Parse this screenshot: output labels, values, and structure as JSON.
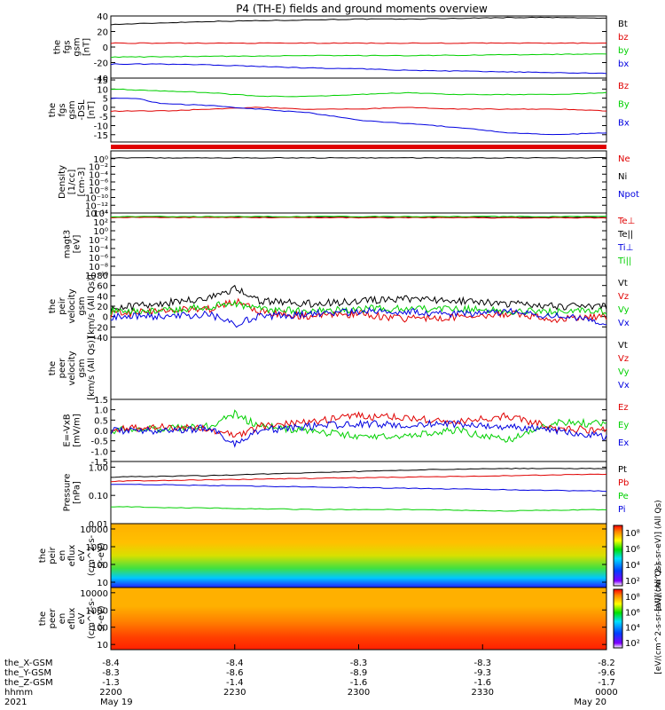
{
  "chart_data": {
    "type": "line",
    "title": "P4 (TH-E) fields and ground moments overview",
    "colors": {
      "black": "#000000",
      "red": "#e00000",
      "green": "#00d000",
      "blue": "#0000e0"
    },
    "panels": [
      {
        "name": "fgs-gsm",
        "ylabel": [
          "the",
          "fgs",
          "gsm",
          "[nT]"
        ],
        "ylim": [
          -40,
          40
        ],
        "yticks": [
          "40",
          "20",
          "0",
          "-20",
          "-40"
        ],
        "tickvals": [
          40,
          20,
          0,
          -20,
          -40
        ],
        "legend": [
          {
            "text": "Bt",
            "color": "black"
          },
          {
            "text": "bz",
            "color": "red"
          },
          {
            "text": "by",
            "color": "green"
          },
          {
            "text": "bx",
            "color": "blue"
          }
        ],
        "series": [
          {
            "color": "black",
            "x": [
              0,
              0.1,
              0.2,
              0.3,
              0.4,
              0.5,
              0.6,
              0.7,
              0.8,
              0.9,
              1
            ],
            "y": [
              29,
              31,
              33,
              34,
              35,
              36,
              36,
              37,
              38,
              38,
              37
            ]
          },
          {
            "color": "red",
            "x": [
              0,
              0.5,
              1
            ],
            "y": [
              5,
              5,
              5
            ]
          },
          {
            "color": "green",
            "x": [
              0,
              0.2,
              0.4,
              0.6,
              0.8,
              1
            ],
            "y": [
              -13,
              -12,
              -11,
              -11,
              -10,
              -9
            ]
          },
          {
            "color": "blue",
            "x": [
              0,
              0.1,
              0.2,
              0.3,
              0.4,
              0.5,
              0.6,
              0.7,
              0.8,
              0.9,
              1
            ],
            "y": [
              -22,
              -22,
              -23,
              -25,
              -27,
              -28,
              -30,
              -31,
              -32,
              -33,
              -34
            ]
          }
        ]
      },
      {
        "name": "fgs-gsm-dsl",
        "ylabel": [
          "the",
          "fgs",
          "gsm",
          "-DSL",
          "[nT]"
        ],
        "ylim": [
          -19,
          16
        ],
        "yticks": [
          "15",
          "10",
          "5",
          "0",
          "-5",
          "-10",
          "-15"
        ],
        "tickvals": [
          15,
          10,
          5,
          0,
          -5,
          -10,
          -15
        ],
        "legend": [
          {
            "text": "Bz",
            "color": "red"
          },
          {
            "text": "By",
            "color": "green"
          },
          {
            "text": "Bx",
            "color": "blue"
          }
        ],
        "series": [
          {
            "color": "green",
            "x": [
              0,
              0.1,
              0.2,
              0.3,
              0.4,
              0.5,
              0.6,
              0.7,
              0.8,
              0.9,
              1
            ],
            "y": [
              10,
              9,
              8,
              6,
              6,
              7,
              8,
              7,
              7,
              7,
              8
            ]
          },
          {
            "color": "red",
            "x": [
              0,
              0.1,
              0.2,
              0.3,
              0.4,
              0.5,
              0.6,
              0.7,
              0.8,
              0.9,
              1
            ],
            "y": [
              -2,
              -2,
              -1,
              0,
              -1,
              -1,
              0,
              -1,
              -1,
              -1,
              -2
            ]
          },
          {
            "color": "blue",
            "x": [
              0,
              0.05,
              0.1,
              0.2,
              0.3,
              0.4,
              0.5,
              0.6,
              0.7,
              0.8,
              0.9,
              1
            ],
            "y": [
              5,
              5,
              2,
              1,
              -1,
              -3,
              -7,
              -9,
              -11,
              -14,
              -15,
              -14
            ]
          }
        ]
      },
      {
        "name": "density",
        "ylabel": [
          "Density",
          "[1/cc]",
          "[cm-3]"
        ],
        "ylim": [
          -14,
          2
        ],
        "log": true,
        "yticks": [
          "10⁰",
          "10⁻²",
          "10⁻⁴",
          "10⁻⁶",
          "10⁻⁸",
          "10⁻¹⁰",
          "10⁻¹²",
          "10⁻¹⁴"
        ],
        "tickvals": [
          0,
          -2,
          -4,
          -6,
          -8,
          -10,
          -12,
          -14
        ],
        "legend": [
          {
            "text": "Ne",
            "color": "red"
          },
          {
            "text": "Ni",
            "color": "black"
          },
          {
            "text": "Npot",
            "color": "blue"
          }
        ],
        "series": [
          {
            "color": "black",
            "x": [
              0,
              1
            ],
            "y": [
              0.2,
              0.2
            ]
          }
        ]
      },
      {
        "name": "temperature",
        "ylabel": [
          "magt3",
          "[eV]"
        ],
        "ylim": [
          -10,
          4
        ],
        "log": true,
        "yticks": [
          "10⁴",
          "10²",
          "10⁰",
          "10⁻²",
          "10⁻⁴",
          "10⁻⁶",
          "10⁻⁸",
          "10⁻¹⁰"
        ],
        "tickvals": [
          4,
          2,
          0,
          -2,
          -4,
          -6,
          -8,
          -10
        ],
        "legend": [
          {
            "text": "Te⊥",
            "color": "red"
          },
          {
            "text": "Te||",
            "color": "black"
          },
          {
            "text": "Ti⊥",
            "color": "blue"
          },
          {
            "text": "Ti||",
            "color": "green"
          }
        ],
        "series": [
          {
            "color": "black",
            "x": [
              0,
              1
            ],
            "y": [
              3.1,
              3.0
            ]
          },
          {
            "color": "red",
            "x": [
              0,
              1
            ],
            "y": [
              3.0,
              2.9
            ]
          },
          {
            "color": "green",
            "x": [
              0,
              1
            ],
            "y": [
              3.2,
              3.2
            ]
          }
        ]
      },
      {
        "name": "peir-velocity",
        "ylabel": [
          "the",
          "peir",
          "velocity",
          "gsm",
          "[km/s (All Qs)]"
        ],
        "ylim": [
          -40,
          80
        ],
        "yticks": [
          "80",
          "60",
          "40",
          "20",
          "0",
          "-20",
          "-40"
        ],
        "tickvals": [
          80,
          60,
          40,
          20,
          0,
          -20,
          -40
        ],
        "legend": [
          {
            "text": "Vt",
            "color": "black"
          },
          {
            "text": "Vz",
            "color": "red"
          },
          {
            "text": "Vy",
            "color": "green"
          },
          {
            "text": "Vx",
            "color": "blue"
          }
        ],
        "series": [
          {
            "color": "black",
            "x": [
              0,
              0.1,
              0.2,
              0.25,
              0.3,
              0.4,
              0.5,
              0.6,
              0.7,
              0.8,
              0.9,
              1
            ],
            "y": [
              15,
              25,
              35,
              55,
              30,
              25,
              30,
              35,
              30,
              25,
              20,
              20
            ]
          },
          {
            "color": "red",
            "x": [
              0,
              0.1,
              0.2,
              0.25,
              0.3,
              0.4,
              0.5,
              0.6,
              0.7,
              0.8,
              0.9,
              1
            ],
            "y": [
              5,
              10,
              15,
              30,
              10,
              0,
              5,
              -5,
              0,
              5,
              -5,
              0
            ]
          },
          {
            "color": "green",
            "x": [
              0,
              0.1,
              0.2,
              0.25,
              0.3,
              0.4,
              0.5,
              0.6,
              0.7,
              0.8,
              0.9,
              1
            ],
            "y": [
              10,
              10,
              20,
              25,
              15,
              10,
              15,
              15,
              15,
              10,
              10,
              10
            ]
          },
          {
            "color": "blue",
            "x": [
              0,
              0.1,
              0.2,
              0.25,
              0.3,
              0.4,
              0.5,
              0.6,
              0.7,
              0.8,
              0.9,
              1
            ],
            "y": [
              0,
              0,
              5,
              -15,
              0,
              5,
              10,
              10,
              5,
              10,
              0,
              -10
            ]
          }
        ]
      },
      {
        "name": "peer-velocity",
        "ylabel": [
          "the",
          "peer",
          "velocity",
          "gsm",
          "[km/s (All Qs)]"
        ],
        "ylim": [
          0,
          1
        ],
        "yticks": [],
        "tickvals": [],
        "legend": [
          {
            "text": "Vt",
            "color": "black"
          },
          {
            "text": "Vz",
            "color": "red"
          },
          {
            "text": "Vy",
            "color": "green"
          },
          {
            "text": "Vx",
            "color": "blue"
          }
        ],
        "series": []
      },
      {
        "name": "e-field",
        "ylabel": [
          "E=-VxB",
          "[mV/m]"
        ],
        "ylim": [
          -1.5,
          1.5
        ],
        "yticks": [
          "1.5",
          "1.0",
          "0.5",
          "0.0",
          "-0.5",
          "-1.0",
          "-1.5"
        ],
        "tickvals": [
          1.5,
          1,
          0.5,
          0,
          -0.5,
          -1,
          -1.5
        ],
        "legend": [
          {
            "text": "Ez",
            "color": "red"
          },
          {
            "text": "Ey",
            "color": "green"
          },
          {
            "text": "Ex",
            "color": "blue"
          }
        ],
        "series": [
          {
            "color": "green",
            "x": [
              0,
              0.1,
              0.2,
              0.25,
              0.3,
              0.4,
              0.5,
              0.6,
              0.7,
              0.8,
              0.9,
              1
            ],
            "y": [
              0,
              0.1,
              0.2,
              0.8,
              0.2,
              0,
              -0.3,
              -0.2,
              0,
              -0.5,
              0.4,
              0.3
            ]
          },
          {
            "color": "red",
            "x": [
              0,
              0.1,
              0.2,
              0.25,
              0.3,
              0.4,
              0.5,
              0.6,
              0.7,
              0.8,
              0.9,
              1
            ],
            "y": [
              0,
              0.2,
              0.1,
              -0.3,
              0.2,
              0.4,
              0.7,
              0.6,
              0.4,
              0.7,
              0.1,
              0
            ]
          },
          {
            "color": "blue",
            "x": [
              0,
              0.1,
              0.2,
              0.25,
              0.3,
              0.4,
              0.5,
              0.6,
              0.7,
              0.8,
              0.9,
              1
            ],
            "y": [
              0,
              0,
              0.1,
              -0.6,
              0,
              0.2,
              0.3,
              0.3,
              0.3,
              0.2,
              0,
              -0.3
            ]
          }
        ]
      },
      {
        "name": "pressure",
        "ylabel": [
          "Pressure",
          "[nPa]"
        ],
        "ylim": [
          -2,
          0.2
        ],
        "log": true,
        "yticks": [
          "1.00",
          "0.10",
          "0.01"
        ],
        "tickvals": [
          0,
          -1,
          -2
        ],
        "legend": [
          {
            "text": "Pt",
            "color": "black"
          },
          {
            "text": "Pb",
            "color": "red"
          },
          {
            "text": "Pe",
            "color": "green"
          },
          {
            "text": "Pi",
            "color": "blue"
          }
        ],
        "series": [
          {
            "color": "black",
            "x": [
              0,
              0.2,
              0.4,
              0.6,
              0.8,
              1
            ],
            "y": [
              -0.35,
              -0.3,
              -0.2,
              -0.1,
              -0.05,
              -0.05
            ]
          },
          {
            "color": "red",
            "x": [
              0,
              0.2,
              0.4,
              0.6,
              0.8,
              1
            ],
            "y": [
              -0.5,
              -0.45,
              -0.4,
              -0.35,
              -0.3,
              -0.25
            ]
          },
          {
            "color": "blue",
            "x": [
              0,
              0.2,
              0.4,
              0.6,
              0.8,
              1
            ],
            "y": [
              -0.6,
              -0.65,
              -0.7,
              -0.75,
              -0.8,
              -0.85
            ]
          },
          {
            "color": "green",
            "x": [
              0,
              0.2,
              0.4,
              0.6,
              0.8,
              1
            ],
            "y": [
              -1.4,
              -1.45,
              -1.5,
              -1.5,
              -1.55,
              -1.5
            ]
          }
        ]
      },
      {
        "name": "peir-spectrogram",
        "ylabel": [
          "the",
          "peir",
          "en",
          "eflux",
          "eV",
          "(cm^2-s-",
          "sr-eV)"
        ],
        "ylim": [
          0.7,
          4.3
        ],
        "log": true,
        "spectrogram": true,
        "yticks": [
          "10000",
          "1000",
          "100",
          "10"
        ],
        "tickvals": [
          4,
          3,
          2,
          1
        ],
        "colorbar": {
          "label": "[eV/(cm^2-s-sr-eV)] (All Qs)",
          "ticks": [
            "10⁸",
            "10⁶",
            "10⁴",
            "10²"
          ]
        }
      },
      {
        "name": "peer-spectrogram",
        "ylabel": [
          "the",
          "peer",
          "en",
          "eflux",
          "eV",
          "(cm^2-s-",
          "sr-eV)"
        ],
        "ylim": [
          0.7,
          4.3
        ],
        "log": true,
        "spectrogram": true,
        "yticks": [
          "10000",
          "1000",
          "100",
          "10"
        ],
        "tickvals": [
          4,
          3,
          2,
          1
        ],
        "colorbar": {
          "label": "[eV/(cm^2-s-sr-eV)] (All Qs)",
          "ticks": [
            "10⁸",
            "10⁶",
            "10⁴",
            "10²"
          ]
        }
      }
    ],
    "xaxis": {
      "row_labels": [
        "the_X-GSM",
        "the_Y-GSM",
        "the_Z-GSM",
        "hhmm",
        "2021"
      ],
      "columns": [
        {
          "values": [
            "-8.4",
            "-8.3",
            "-1.3",
            "2200",
            "May 19"
          ]
        },
        {
          "values": [
            "-8.4",
            "-8.6",
            "-1.4",
            "2230",
            ""
          ]
        },
        {
          "values": [
            "-8.3",
            "-8.9",
            "-1.6",
            "2300",
            ""
          ]
        },
        {
          "values": [
            "-8.3",
            "-9.3",
            "-1.6",
            "2330",
            ""
          ]
        },
        {
          "values": [
            "-8.2",
            "-9.6",
            "-1.7",
            "0000",
            "May 20"
          ]
        }
      ]
    }
  }
}
